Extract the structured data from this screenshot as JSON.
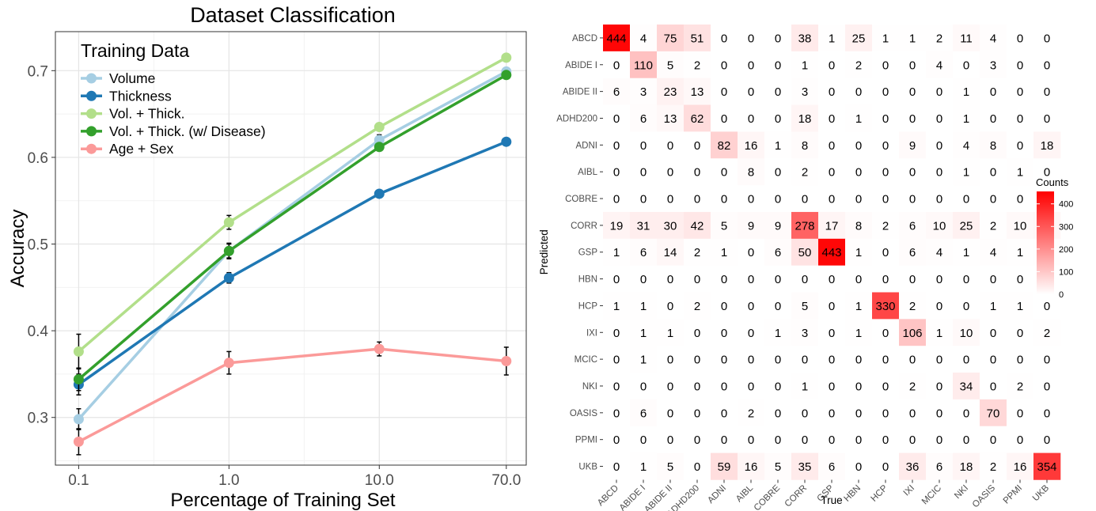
{
  "chart_data": [
    {
      "type": "line",
      "title": "Dataset Classification",
      "xlabel": "Percentage of Training Set",
      "ylabel": "Accuracy",
      "x_scale": "log",
      "x": [
        0.1,
        1.0,
        10.0,
        70.0
      ],
      "x_tick_labels": [
        "0.1",
        "1.0",
        "10.0",
        "70.0"
      ],
      "y_ticks": [
        "0.3",
        "0.4",
        "0.5",
        "0.6",
        "0.7"
      ],
      "ylim": [
        0.245,
        0.745
      ],
      "grid": true,
      "legend_title": "Training Data",
      "legend_position": "top-left",
      "series": [
        {
          "name": "Volume",
          "color": "#a6cee3",
          "values": [
            0.298,
            0.492,
            0.62,
            0.699
          ],
          "errors": [
            0.012,
            0.009,
            0.006,
            0.004
          ]
        },
        {
          "name": "Thickness",
          "color": "#1f78b4",
          "values": [
            0.338,
            0.461,
            0.558,
            0.618
          ],
          "errors": [
            0.012,
            0.006,
            0.004,
            0.003
          ]
        },
        {
          "name": "Vol. + Thick.",
          "color": "#b2df8a",
          "values": [
            0.376,
            0.525,
            0.635,
            0.715
          ],
          "errors": [
            0.02,
            0.008,
            0.004,
            0.003
          ]
        },
        {
          "name": "Vol. + Thick. (w/ Disease)",
          "color": "#33a02c",
          "values": [
            0.344,
            0.492,
            0.612,
            0.695
          ],
          "errors": [
            0.013,
            0.008,
            0.004,
            0.003
          ]
        },
        {
          "name": "Age + Sex",
          "color": "#fb9a99",
          "values": [
            0.272,
            0.363,
            0.379,
            0.365
          ],
          "errors": [
            0.015,
            0.013,
            0.008,
            0.016
          ]
        }
      ]
    },
    {
      "type": "heatmap",
      "xlabel": "True",
      "ylabel": "Predicted",
      "labels": [
        "ABCD",
        "ABIDE I",
        "ABIDE II",
        "ADHD200",
        "ADNI",
        "AIBL",
        "COBRE",
        "CORR",
        "GSP",
        "HBN",
        "HCP",
        "IXI",
        "MCIC",
        "NKI",
        "OASIS",
        "PPMI",
        "UKB"
      ],
      "legend_title": "Counts",
      "legend_ticks": [
        0,
        100,
        200,
        300,
        400
      ],
      "color_range": [
        "#ffffff",
        "#ff0000"
      ],
      "max_value": 455,
      "matrix": [
        [
          444,
          4,
          75,
          51,
          0,
          0,
          0,
          38,
          1,
          25,
          1,
          1,
          2,
          11,
          4,
          0,
          0
        ],
        [
          0,
          110,
          5,
          2,
          0,
          0,
          0,
          1,
          0,
          2,
          0,
          0,
          4,
          0,
          3,
          0,
          0
        ],
        [
          6,
          3,
          23,
          13,
          0,
          0,
          0,
          3,
          0,
          0,
          0,
          0,
          0,
          1,
          0,
          0,
          0
        ],
        [
          0,
          6,
          13,
          62,
          0,
          0,
          0,
          18,
          0,
          1,
          0,
          0,
          0,
          1,
          0,
          0,
          0
        ],
        [
          0,
          0,
          0,
          0,
          82,
          16,
          1,
          8,
          0,
          0,
          0,
          9,
          0,
          4,
          8,
          0,
          18
        ],
        [
          0,
          0,
          0,
          0,
          0,
          8,
          0,
          2,
          0,
          0,
          0,
          0,
          0,
          1,
          0,
          1,
          0
        ],
        [
          0,
          0,
          0,
          0,
          0,
          0,
          0,
          0,
          0,
          0,
          0,
          0,
          0,
          0,
          0,
          0,
          0
        ],
        [
          19,
          31,
          30,
          42,
          5,
          9,
          9,
          278,
          17,
          8,
          2,
          6,
          10,
          25,
          2,
          10,
          16
        ],
        [
          1,
          6,
          14,
          2,
          1,
          0,
          6,
          50,
          443,
          1,
          0,
          6,
          4,
          1,
          4,
          1,
          4
        ],
        [
          0,
          0,
          0,
          0,
          0,
          0,
          0,
          0,
          0,
          0,
          0,
          0,
          0,
          0,
          0,
          0,
          0
        ],
        [
          1,
          1,
          0,
          2,
          0,
          0,
          0,
          5,
          0,
          1,
          330,
          2,
          0,
          0,
          1,
          1,
          0
        ],
        [
          0,
          1,
          1,
          0,
          0,
          0,
          1,
          3,
          0,
          1,
          0,
          106,
          1,
          10,
          0,
          0,
          2
        ],
        [
          0,
          1,
          0,
          0,
          0,
          0,
          0,
          0,
          0,
          0,
          0,
          0,
          0,
          0,
          0,
          0,
          0
        ],
        [
          0,
          0,
          0,
          0,
          0,
          0,
          0,
          1,
          0,
          0,
          0,
          2,
          0,
          34,
          0,
          2,
          0
        ],
        [
          0,
          6,
          0,
          0,
          0,
          2,
          0,
          0,
          0,
          0,
          0,
          0,
          0,
          0,
          70,
          0,
          0
        ],
        [
          0,
          0,
          0,
          0,
          0,
          0,
          0,
          0,
          0,
          0,
          0,
          0,
          0,
          0,
          0,
          0,
          0
        ],
        [
          0,
          1,
          5,
          0,
          59,
          16,
          5,
          35,
          6,
          0,
          0,
          36,
          6,
          18,
          2,
          16,
          354
        ]
      ]
    }
  ]
}
